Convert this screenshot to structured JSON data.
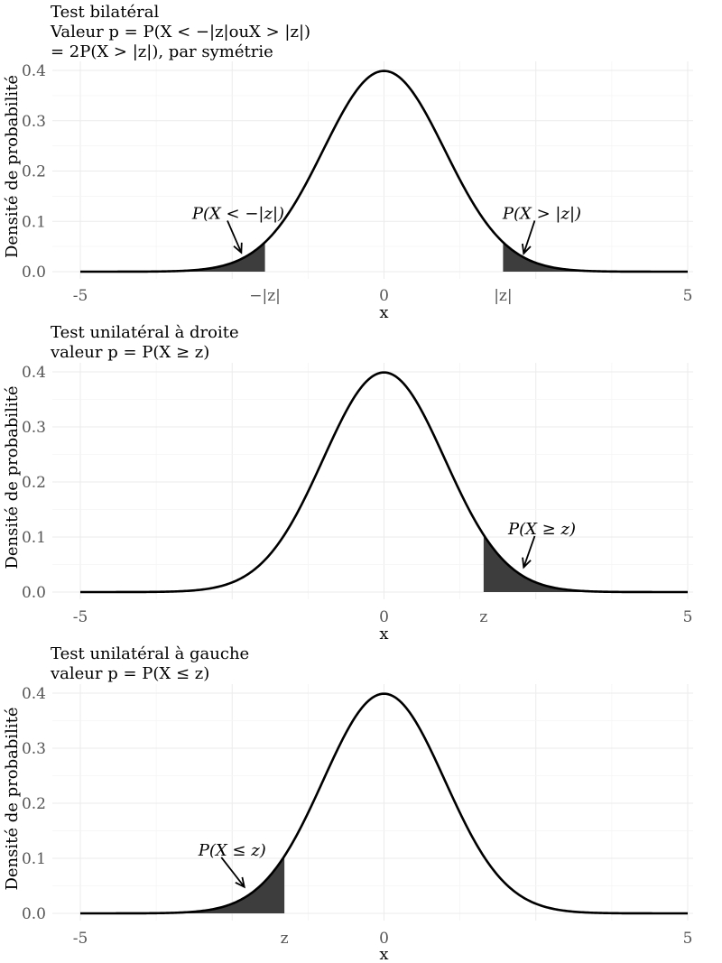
{
  "chart_data": [
    {
      "type": "area",
      "title": [
        "Test bilatéral",
        "Valeur p = P(X < −|z|ouX > |z|)",
        "= 2P(X > |z|), par symétrie"
      ],
      "xlabel": "x",
      "ylabel": "Densité de probabilité",
      "xlim": [
        -5,
        5
      ],
      "ylim": [
        0,
        0.4
      ],
      "x_ticks": [
        {
          "value": -5,
          "label": "-5"
        },
        {
          "value": -1.96,
          "label": "−|z|"
        },
        {
          "value": 0,
          "label": "0"
        },
        {
          "value": 1.96,
          "label": "|z|"
        },
        {
          "value": 5,
          "label": "5"
        }
      ],
      "y_ticks": [
        {
          "value": 0,
          "label": "0.0"
        },
        {
          "value": 0.1,
          "label": "0.1"
        },
        {
          "value": 0.2,
          "label": "0.2"
        },
        {
          "value": 0.3,
          "label": "0.3"
        },
        {
          "value": 0.4,
          "label": "0.4"
        }
      ],
      "curve": "standard normal density",
      "shaded_regions": [
        [
          -5,
          -1.96
        ],
        [
          1.96,
          5
        ]
      ],
      "annotations": [
        {
          "text": "P(X < −|z|)",
          "x": -2.4,
          "y": 0.105,
          "arrow_to": [
            -2.35,
            0.038
          ]
        },
        {
          "text": "P(X > |z|)",
          "x": 2.6,
          "y": 0.105,
          "arrow_to": [
            2.3,
            0.036
          ]
        }
      ],
      "grid": true
    },
    {
      "type": "area",
      "title": [
        "Test unilatéral à droite",
        "valeur p = P(X ≥ z)"
      ],
      "xlabel": "x",
      "ylabel": "Densité de probabilité",
      "xlim": [
        -5,
        5
      ],
      "ylim": [
        0,
        0.4
      ],
      "x_ticks": [
        {
          "value": -5,
          "label": "-5"
        },
        {
          "value": 0,
          "label": "0"
        },
        {
          "value": 1.64,
          "label": "z"
        },
        {
          "value": 5,
          "label": "5"
        }
      ],
      "y_ticks": [
        {
          "value": 0,
          "label": "0.0"
        },
        {
          "value": 0.1,
          "label": "0.1"
        },
        {
          "value": 0.2,
          "label": "0.2"
        },
        {
          "value": 0.3,
          "label": "0.3"
        },
        {
          "value": 0.4,
          "label": "0.4"
        }
      ],
      "curve": "standard normal density",
      "shaded_regions": [
        [
          1.64,
          5
        ]
      ],
      "annotations": [
        {
          "text": "P(X ≥ z)",
          "x": 2.6,
          "y": 0.105,
          "arrow_to": [
            2.3,
            0.045
          ]
        }
      ],
      "grid": true
    },
    {
      "type": "area",
      "title": [
        "Test unilatéral à gauche",
        "valeur p = P(X ≤ z)"
      ],
      "xlabel": "x",
      "ylabel": "Densité de probabilité",
      "xlim": [
        -5,
        5
      ],
      "ylim": [
        0,
        0.4
      ],
      "x_ticks": [
        {
          "value": -5,
          "label": "-5"
        },
        {
          "value": -1.64,
          "label": "z"
        },
        {
          "value": 0,
          "label": "0"
        },
        {
          "value": 5,
          "label": "5"
        }
      ],
      "y_ticks": [
        {
          "value": 0,
          "label": "0.0"
        },
        {
          "value": 0.1,
          "label": "0.1"
        },
        {
          "value": 0.2,
          "label": "0.2"
        },
        {
          "value": 0.3,
          "label": "0.3"
        },
        {
          "value": 0.4,
          "label": "0.4"
        }
      ],
      "curve": "standard normal density",
      "shaded_regions": [
        [
          -5,
          -1.64
        ]
      ],
      "annotations": [
        {
          "text": "P(X ≤ z)",
          "x": -2.5,
          "y": 0.105,
          "arrow_to": [
            -2.3,
            0.048
          ]
        }
      ],
      "grid": true
    }
  ],
  "colors": {
    "curve": "#000000",
    "shade": "#3d3d3d",
    "grid": "#ebebeb",
    "tick_text": "#555555"
  }
}
